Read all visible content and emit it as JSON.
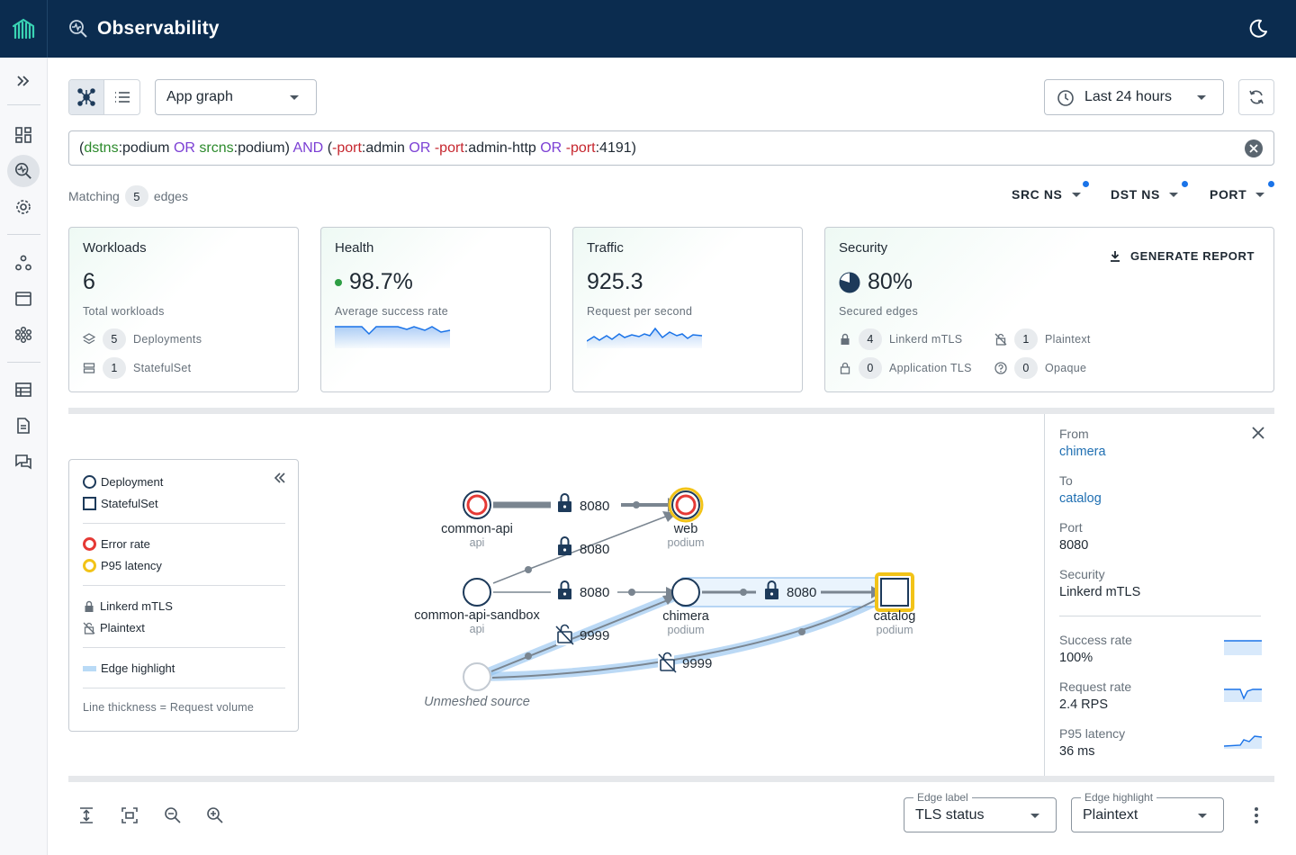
{
  "app": {
    "title": "Observability"
  },
  "toolbar": {
    "view_select": "App graph",
    "time_range": "Last 24 hours"
  },
  "query": {
    "parts": [
      {
        "text": "(",
        "kind": "v"
      },
      {
        "text": "dstns",
        "kind": "ns"
      },
      {
        "text": ":podium ",
        "kind": "v"
      },
      {
        "text": "OR ",
        "kind": "op"
      },
      {
        "text": "srcns",
        "kind": "ns"
      },
      {
        "text": ":podium) ",
        "kind": "v"
      },
      {
        "text": "AND ",
        "kind": "op"
      },
      {
        "text": "(",
        "kind": "v"
      },
      {
        "text": "-port",
        "kind": "port"
      },
      {
        "text": ":admin ",
        "kind": "v"
      },
      {
        "text": "OR ",
        "kind": "op"
      },
      {
        "text": "-port",
        "kind": "port"
      },
      {
        "text": ":admin-http ",
        "kind": "v"
      },
      {
        "text": "OR ",
        "kind": "op"
      },
      {
        "text": "-port",
        "kind": "port"
      },
      {
        "text": ":4191)",
        "kind": "v"
      }
    ]
  },
  "matching": {
    "prefix": "Matching",
    "count": "5",
    "suffix": "edges"
  },
  "filters": {
    "src": "SRC NS",
    "dst": "DST NS",
    "port": "PORT"
  },
  "cards": {
    "workloads": {
      "title": "Workloads",
      "value": "6",
      "sub": "Total workloads",
      "deploy_count": "5",
      "deploy_label": "Deployments",
      "sts_count": "1",
      "sts_label": "StatefulSet"
    },
    "health": {
      "title": "Health",
      "value": "98.7%",
      "sub": "Average success rate"
    },
    "traffic": {
      "title": "Traffic",
      "value": "925.3",
      "sub": "Request per second"
    },
    "security": {
      "title": "Security",
      "value": "80%",
      "sub": "Secured edges",
      "report": "GENERATE REPORT",
      "mtls_count": "4",
      "mtls_label": "Linkerd mTLS",
      "plain_count": "1",
      "plain_label": "Plaintext",
      "apptls_count": "0",
      "apptls_label": "Application TLS",
      "opaque_count": "0",
      "opaque_label": "Opaque"
    }
  },
  "legend": {
    "deployment": "Deployment",
    "statefulset": "StatefulSet",
    "error_rate": "Error rate",
    "p95": "P95 latency",
    "mtls": "Linkerd mTLS",
    "plaintext": "Plaintext",
    "edge_highlight": "Edge highlight",
    "note": "Line thickness = Request volume"
  },
  "graph": {
    "nodes": {
      "common_api": {
        "name": "common-api",
        "ns": "api"
      },
      "web": {
        "name": "web",
        "ns": "podium"
      },
      "sandbox": {
        "name": "common-api-sandbox",
        "ns": "api"
      },
      "chimera": {
        "name": "chimera",
        "ns": "podium"
      },
      "catalog": {
        "name": "catalog",
        "ns": "podium"
      },
      "unmeshed": {
        "name": "Unmeshed source"
      }
    },
    "edges": {
      "e1": "8080",
      "e2": "8080",
      "e3": "8080",
      "e4": "8080",
      "e5": "9999",
      "e6": "9999"
    }
  },
  "panel": {
    "from_label": "From",
    "from": "chimera",
    "to_label": "To",
    "to": "catalog",
    "port_label": "Port",
    "port": "8080",
    "security_label": "Security",
    "security": "Linkerd mTLS",
    "success_label": "Success rate",
    "success": "100%",
    "request_label": "Request rate",
    "request": "2.4 RPS",
    "p95_label": "P95 latency",
    "p95": "36 ms"
  },
  "bottom": {
    "edge_label_legend": "Edge label",
    "edge_label_value": "TLS status",
    "edge_highlight_legend": "Edge highlight",
    "edge_highlight_value": "Plaintext"
  },
  "colors": {
    "header": "#0b2c4f",
    "accent": "#1a73e8",
    "node": "#1d3a5a",
    "error": "#e53935",
    "latency": "#f2c318",
    "highlight": "#8ec0ee"
  }
}
